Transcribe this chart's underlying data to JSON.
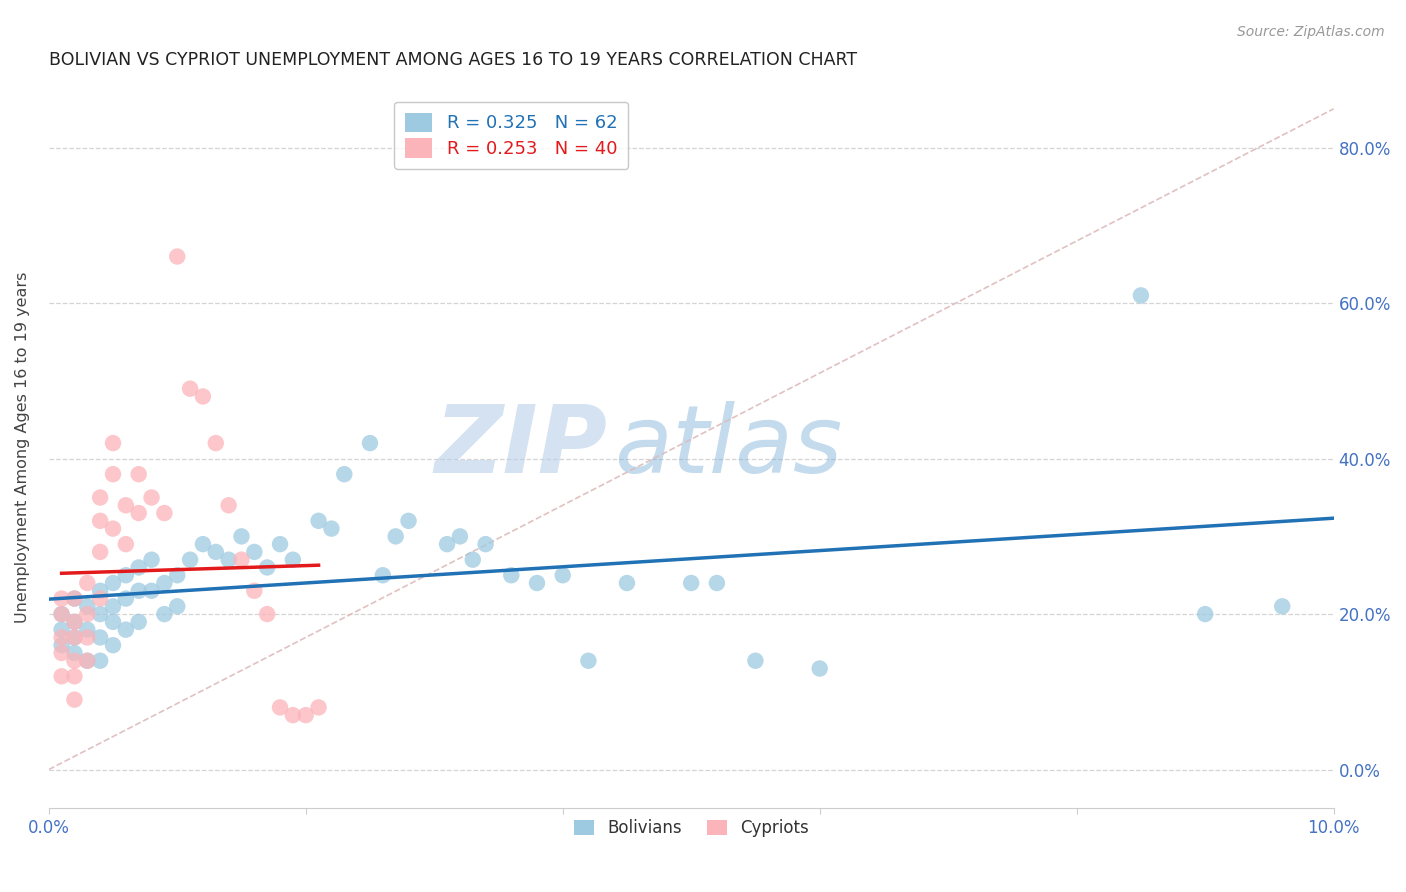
{
  "title": "BOLIVIAN VS CYPRIOT UNEMPLOYMENT AMONG AGES 16 TO 19 YEARS CORRELATION CHART",
  "source": "Source: ZipAtlas.com",
  "ylabel": "Unemployment Among Ages 16 to 19 years",
  "bolivia_R": 0.325,
  "bolivia_N": 62,
  "cypriot_R": 0.253,
  "cypriot_N": 40,
  "xlim": [
    0.0,
    0.1
  ],
  "ylim": [
    -0.05,
    0.88
  ],
  "yticks": [
    0.0,
    0.2,
    0.4,
    0.6,
    0.8
  ],
  "xticks": [
    0.0,
    0.02,
    0.04,
    0.06,
    0.08,
    0.1
  ],
  "xtick_labels": [
    "0.0%",
    "",
    "",
    "",
    "",
    "10.0%"
  ],
  "ytick_labels_right": [
    "0.0%",
    "20.0%",
    "40.0%",
    "60.0%",
    "80.0%"
  ],
  "blue_color": "#9ecae1",
  "pink_color": "#fbb4b9",
  "blue_line_color": "#2171b5",
  "pink_line_color": "#e31a1c",
  "axis_tick_color": "#4472c4",
  "watermark_zip": "ZIP",
  "watermark_atlas": "atlas",
  "bolivia_x": [
    0.001,
    0.001,
    0.001,
    0.002,
    0.002,
    0.002,
    0.002,
    0.003,
    0.003,
    0.003,
    0.004,
    0.004,
    0.004,
    0.004,
    0.005,
    0.005,
    0.005,
    0.005,
    0.006,
    0.006,
    0.006,
    0.007,
    0.007,
    0.007,
    0.008,
    0.008,
    0.009,
    0.009,
    0.01,
    0.01,
    0.011,
    0.012,
    0.013,
    0.014,
    0.015,
    0.016,
    0.017,
    0.018,
    0.019,
    0.021,
    0.022,
    0.023,
    0.025,
    0.026,
    0.027,
    0.028,
    0.031,
    0.032,
    0.033,
    0.034,
    0.036,
    0.038,
    0.04,
    0.042,
    0.045,
    0.05,
    0.052,
    0.055,
    0.06,
    0.085,
    0.09,
    0.096
  ],
  "bolivia_y": [
    0.2,
    0.18,
    0.16,
    0.22,
    0.19,
    0.17,
    0.15,
    0.21,
    0.18,
    0.14,
    0.23,
    0.2,
    0.17,
    0.14,
    0.24,
    0.21,
    0.19,
    0.16,
    0.25,
    0.22,
    0.18,
    0.26,
    0.23,
    0.19,
    0.27,
    0.23,
    0.24,
    0.2,
    0.25,
    0.21,
    0.27,
    0.29,
    0.28,
    0.27,
    0.3,
    0.28,
    0.26,
    0.29,
    0.27,
    0.32,
    0.31,
    0.38,
    0.42,
    0.25,
    0.3,
    0.32,
    0.29,
    0.3,
    0.27,
    0.29,
    0.25,
    0.24,
    0.25,
    0.14,
    0.24,
    0.24,
    0.24,
    0.14,
    0.13,
    0.61,
    0.2,
    0.21
  ],
  "cypriot_x": [
    0.001,
    0.001,
    0.001,
    0.001,
    0.001,
    0.002,
    0.002,
    0.002,
    0.002,
    0.002,
    0.002,
    0.003,
    0.003,
    0.003,
    0.003,
    0.004,
    0.004,
    0.004,
    0.004,
    0.005,
    0.005,
    0.005,
    0.006,
    0.006,
    0.007,
    0.007,
    0.008,
    0.009,
    0.01,
    0.011,
    0.012,
    0.013,
    0.014,
    0.015,
    0.016,
    0.017,
    0.018,
    0.019,
    0.02,
    0.021
  ],
  "cypriot_y": [
    0.2,
    0.17,
    0.15,
    0.22,
    0.12,
    0.22,
    0.19,
    0.17,
    0.14,
    0.12,
    0.09,
    0.24,
    0.2,
    0.17,
    0.14,
    0.35,
    0.32,
    0.28,
    0.22,
    0.42,
    0.38,
    0.31,
    0.34,
    0.29,
    0.38,
    0.33,
    0.35,
    0.33,
    0.66,
    0.49,
    0.48,
    0.42,
    0.34,
    0.27,
    0.23,
    0.2,
    0.08,
    0.07,
    0.07,
    0.08
  ],
  "ref_line_color": "#ddbbbb",
  "ref_line_x": [
    0.0,
    0.1
  ],
  "ref_line_y": [
    0.0,
    0.85
  ]
}
